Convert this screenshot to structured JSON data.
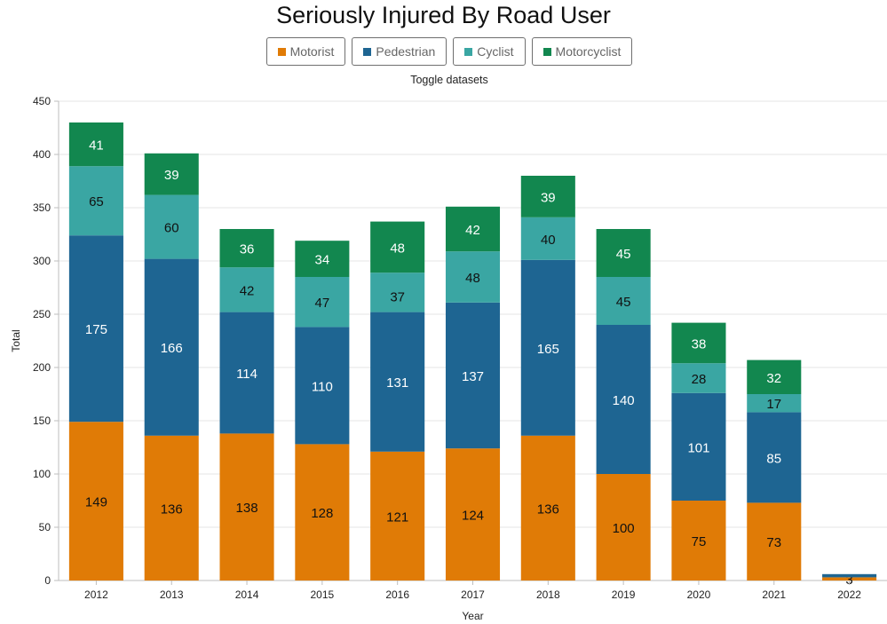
{
  "header": {
    "title": "Seriously Injured By Road User",
    "toggle_caption": "Toggle datasets"
  },
  "legend": [
    {
      "label": "Motorist",
      "color": "#e07b06"
    },
    {
      "label": "Pedestrian",
      "color": "#1e6592"
    },
    {
      "label": "Cyclist",
      "color": "#3aa6a3"
    },
    {
      "label": "Motorcyclist",
      "color": "#12874f"
    }
  ],
  "chart_data": {
    "type": "bar",
    "stacked": true,
    "title": "Seriously Injured By Road User",
    "xlabel": "Year",
    "ylabel": "Total",
    "ylim": [
      0,
      450
    ],
    "yticks": [
      0,
      50,
      100,
      150,
      200,
      250,
      300,
      350,
      400,
      450
    ],
    "grid": true,
    "legend_position": "top",
    "categories": [
      "2012",
      "2013",
      "2014",
      "2015",
      "2016",
      "2017",
      "2018",
      "2019",
      "2020",
      "2021",
      "2022"
    ],
    "series": [
      {
        "name": "Motorist",
        "color": "#e07b06",
        "label_color": "#111111",
        "values": [
          149,
          136,
          138,
          128,
          121,
          124,
          136,
          100,
          75,
          73,
          3
        ]
      },
      {
        "name": "Pedestrian",
        "color": "#1e6592",
        "label_color": "#ffffff",
        "values": [
          175,
          166,
          114,
          110,
          131,
          137,
          165,
          140,
          101,
          85,
          3
        ]
      },
      {
        "name": "Cyclist",
        "color": "#3aa6a3",
        "label_color": "#111111",
        "values": [
          65,
          60,
          42,
          47,
          37,
          48,
          40,
          45,
          28,
          17,
          0
        ]
      },
      {
        "name": "Motorcyclist",
        "color": "#12874f",
        "label_color": "#ffffff",
        "values": [
          41,
          39,
          36,
          34,
          48,
          42,
          39,
          45,
          38,
          32,
          0
        ]
      }
    ],
    "highlighted_label": {
      "series": "Cyclist",
      "category": "2016"
    },
    "unlabeled_segments": [
      {
        "series": "Pedestrian",
        "category": "2022"
      }
    ]
  }
}
